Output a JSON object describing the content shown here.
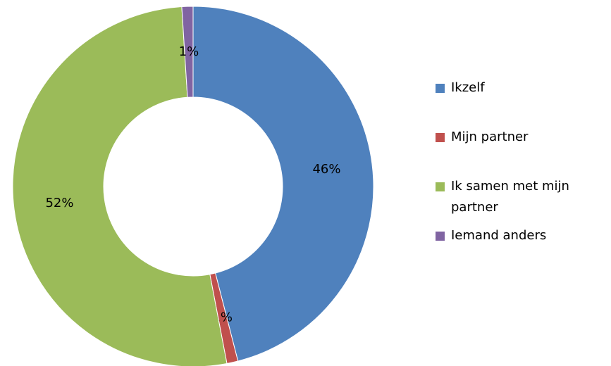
{
  "chart_data": {
    "type": "donut",
    "categories": [
      "Ikzelf",
      "Mijn partner",
      "Ik samen met mijn partner",
      "Iemand anders"
    ],
    "values": [
      46,
      1,
      52,
      1
    ],
    "value_labels": [
      "46%",
      "1%",
      "52%",
      "1%"
    ],
    "colors": [
      "#4f81bd",
      "#c0504d",
      "#9bbb59",
      "#8064a2"
    ],
    "legend": "right"
  }
}
